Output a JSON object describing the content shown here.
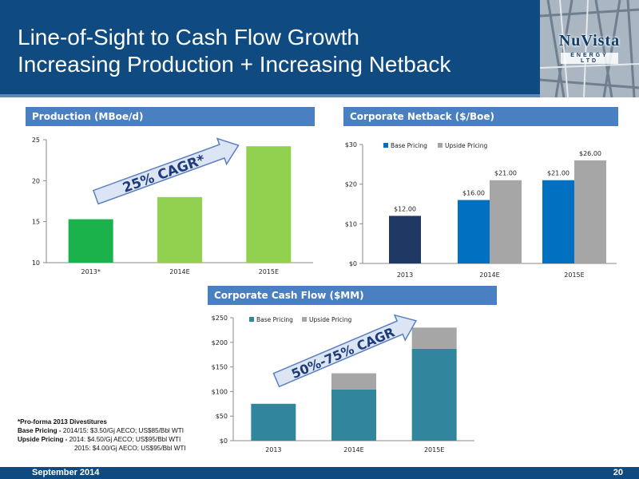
{
  "header": {
    "title_line1": "Line-of-Sight to Cash Flow Growth",
    "title_line2": "Increasing Production + Increasing Netback",
    "logo_text": "NuVista",
    "logo_sub": "ENERGY LTD"
  },
  "chart_data": [
    {
      "type": "bar",
      "title": "Production (MBoe/d)",
      "categories": [
        "2013*",
        "2014E",
        "2015E"
      ],
      "values": [
        15.3,
        18.0,
        24.2
      ],
      "colors": [
        "#1cb24b",
        "#92d050",
        "#92d050"
      ],
      "ylim": [
        10,
        25
      ],
      "yticks": [
        10,
        15,
        20,
        25
      ],
      "annotation": "25% CAGR*"
    },
    {
      "type": "bar",
      "title": "Corporate Netback ($/Boe)",
      "categories": [
        "2013",
        "2014E",
        "2015E"
      ],
      "series": [
        {
          "name": "Base Pricing",
          "values": [
            12.0,
            16.0,
            21.0
          ],
          "labels": [
            "$12.00",
            "$16.00",
            "$21.00"
          ],
          "color": "#0070c0"
        },
        {
          "name": "Upside Pricing",
          "values": [
            null,
            21.0,
            26.0
          ],
          "labels": [
            "",
            "$21.00",
            "$26.00"
          ],
          "color": "#a6a6a6"
        }
      ],
      "first_bar_color": "#1f3864",
      "ylim": [
        0,
        30
      ],
      "yticks": [
        "$0",
        "$10",
        "$20",
        "$30"
      ],
      "legend": "top-left"
    },
    {
      "type": "bar",
      "stacked": true,
      "title": "Corporate Cash Flow ($MM)",
      "categories": [
        "2013",
        "2014E",
        "2015E"
      ],
      "series": [
        {
          "name": "Base Pricing",
          "values": [
            75,
            104,
            187
          ],
          "color": "#31859c"
        },
        {
          "name": "Upside Pricing",
          "values": [
            0,
            33,
            43
          ],
          "color": "#a6a6a6"
        }
      ],
      "ylim": [
        0,
        250
      ],
      "yticks": [
        "$0",
        "$50",
        "$100",
        "$150",
        "$200",
        "$250"
      ],
      "legend": "top-left",
      "annotation": "50%-75% CAGR"
    }
  ],
  "footnote": {
    "line1": "*Pro-forma 2013 Divestitures",
    "base_label": "Base Pricing -",
    "base_text": " 2014/15: $3.50/Gj AECO; US$85/Bbl WTI",
    "upside_label": "Upside Pricing -",
    "upside_text": " 2014: $4.50/Gj AECO; US$95/Bbl WTI",
    "line4": "2015: $4.00/Gj AECO; US$95/Bbl WTI"
  },
  "footer": {
    "date": "September 2014",
    "page": "20"
  }
}
